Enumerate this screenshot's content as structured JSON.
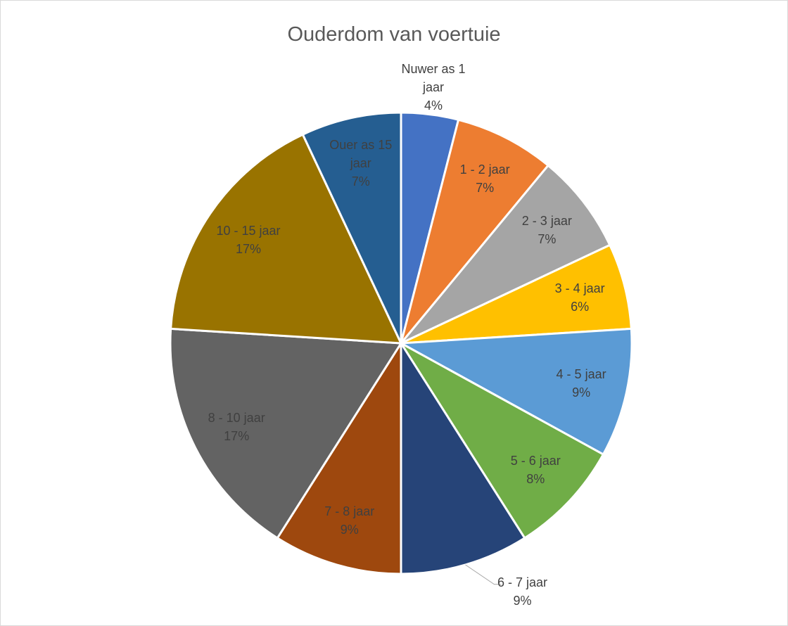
{
  "chart_data": {
    "type": "pie",
    "title": "Ouderdom van voertuie",
    "categories": [
      "Nuwer as 1 jaar",
      "1 - 2 jaar",
      "2 - 3 jaar",
      "3 - 4 jaar",
      "4 - 5 jaar",
      "5 - 6 jaar",
      "6 - 7 jaar",
      "7 - 8 jaar",
      "8 - 10 jaar",
      "10 - 15 jaar",
      "Ouer as 15 jaar"
    ],
    "values": [
      4,
      7,
      7,
      6,
      9,
      8,
      9,
      9,
      17,
      17,
      7
    ],
    "value_labels": [
      "4%",
      "7%",
      "7%",
      "6%",
      "9%",
      "8%",
      "9%",
      "9%",
      "17%",
      "17%",
      "7%"
    ],
    "colors": [
      "#4472c4",
      "#ed7d31",
      "#a5a5a5",
      "#ffc000",
      "#5b9bd5",
      "#70ad47",
      "#264478",
      "#9e480e",
      "#636363",
      "#997300",
      "#255e91"
    ]
  }
}
